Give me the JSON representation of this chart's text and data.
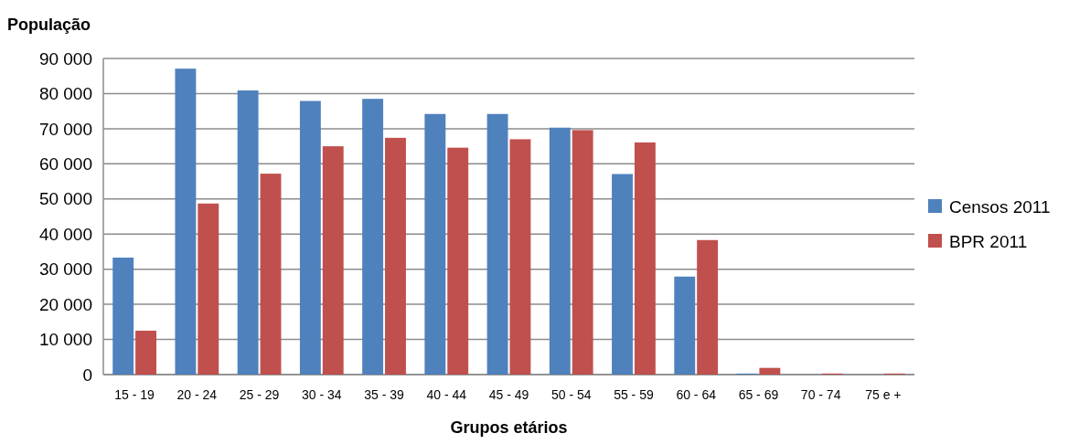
{
  "chart_data": {
    "type": "bar",
    "ylabel": "População",
    "xlabel": "Grupos etários",
    "categories": [
      "15 - 19",
      "20 - 24",
      "25 - 29",
      "30 - 34",
      "35 - 39",
      "40 - 44",
      "45 - 49",
      "50 - 54",
      "55 - 59",
      "60 - 64",
      "65 - 69",
      "70 - 74",
      "75 e +"
    ],
    "series": [
      {
        "name": "Censos 2011",
        "color": "#4f81bd",
        "values": [
          33300,
          87100,
          80900,
          77900,
          78500,
          74200,
          74200,
          70300,
          57100,
          27900,
          300,
          0,
          0
        ]
      },
      {
        "name": "BPR 2011",
        "color": "#c0504d",
        "values": [
          12500,
          48700,
          57200,
          65000,
          67400,
          64600,
          67000,
          69600,
          66100,
          38300,
          1900,
          300,
          300
        ]
      }
    ],
    "ylim": [
      0,
      90000
    ],
    "yticks": [
      {
        "value": 0,
        "label": "0"
      },
      {
        "value": 10000,
        "label": "10 000"
      },
      {
        "value": 20000,
        "label": "20 000"
      },
      {
        "value": 30000,
        "label": "30 000"
      },
      {
        "value": 40000,
        "label": "40 000"
      },
      {
        "value": 50000,
        "label": "50 000"
      },
      {
        "value": 60000,
        "label": "60 000"
      },
      {
        "value": 70000,
        "label": "70 000"
      },
      {
        "value": 80000,
        "label": "80 000"
      },
      {
        "value": 90000,
        "label": "90 000"
      }
    ],
    "grid": "y",
    "legend": "right"
  }
}
